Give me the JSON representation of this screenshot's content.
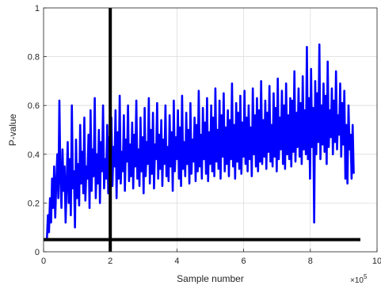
{
  "chart_data": {
    "type": "line",
    "xlabel": "Sample number",
    "ylabel": "P-value",
    "x_exponent_label": "×10",
    "x_exponent_power": "5",
    "xlim": [
      0,
      10
    ],
    "ylim": [
      0,
      1
    ],
    "grid": true,
    "x_ticks": [
      0,
      2,
      4,
      6,
      8,
      10
    ],
    "x_tick_labels": [
      "0",
      "2",
      "4",
      "6",
      "8",
      "10"
    ],
    "y_ticks": [
      0,
      0.2,
      0.4,
      0.6,
      0.8,
      1
    ],
    "y_tick_labels": [
      "0",
      "0.2",
      "0.4",
      "0.6",
      "0.8",
      "1"
    ],
    "series": [
      {
        "color": "#0000ff",
        "x_start": 0.1,
        "x_end": 9.3,
        "values": [
          0.05,
          0.15,
          0.08,
          0.22,
          0.12,
          0.3,
          0.18,
          0.35,
          0.14,
          0.28,
          0.4,
          0.22,
          0.62,
          0.3,
          0.18,
          0.42,
          0.25,
          0.35,
          0.12,
          0.28,
          0.45,
          0.2,
          0.38,
          0.15,
          0.6,
          0.26,
          0.33,
          0.1,
          0.46,
          0.22,
          0.36,
          0.19,
          0.52,
          0.28,
          0.41,
          0.24,
          0.55,
          0.21,
          0.35,
          0.3,
          0.48,
          0.18,
          0.58,
          0.25,
          0.42,
          0.31,
          0.63,
          0.22,
          0.4,
          0.28,
          0.5,
          0.2,
          0.45,
          0.33,
          0.6,
          0.26,
          0.38,
          0.3,
          0.52,
          0.24,
          0.47,
          0.32,
          0.55,
          0.27,
          0.43,
          0.35,
          0.58,
          0.22,
          0.49,
          0.3,
          0.64,
          0.28,
          0.41,
          0.33,
          0.56,
          0.25,
          0.46,
          0.37,
          0.6,
          0.29,
          0.44,
          0.31,
          0.53,
          0.26,
          0.48,
          0.35,
          0.62,
          0.3,
          0.42,
          0.27,
          0.55,
          0.33,
          0.47,
          0.24,
          0.59,
          0.31,
          0.45,
          0.36,
          0.63,
          0.28,
          0.5,
          0.32,
          0.57,
          0.26,
          0.44,
          0.38,
          0.61,
          0.3,
          0.48,
          0.34,
          0.54,
          0.27,
          0.46,
          0.36,
          0.6,
          0.31,
          0.43,
          0.29,
          0.56,
          0.35,
          0.49,
          0.25,
          0.62,
          0.33,
          0.47,
          0.38,
          0.58,
          0.3,
          0.51,
          0.27,
          0.64,
          0.34,
          0.45,
          0.31,
          0.57,
          0.36,
          0.5,
          0.28,
          0.61,
          0.32,
          0.46,
          0.37,
          0.55,
          0.29,
          0.52,
          0.33,
          0.66,
          0.35,
          0.48,
          0.3,
          0.59,
          0.38,
          0.53,
          0.32,
          0.63,
          0.29,
          0.49,
          0.36,
          0.6,
          0.33,
          0.55,
          0.31,
          0.67,
          0.37,
          0.5,
          0.34,
          0.62,
          0.3,
          0.56,
          0.39,
          0.65,
          0.33,
          0.51,
          0.36,
          0.58,
          0.31,
          0.54,
          0.38,
          0.69,
          0.35,
          0.52,
          0.3,
          0.61,
          0.37,
          0.57,
          0.34,
          0.64,
          0.32,
          0.53,
          0.39,
          0.66,
          0.36,
          0.55,
          0.33,
          0.6,
          0.38,
          0.51,
          0.31,
          0.67,
          0.4,
          0.56,
          0.35,
          0.63,
          0.33,
          0.58,
          0.37,
          0.7,
          0.36,
          0.54,
          0.39,
          0.62,
          0.34,
          0.57,
          0.41,
          0.68,
          0.37,
          0.52,
          0.35,
          0.65,
          0.39,
          0.59,
          0.33,
          0.71,
          0.38,
          0.55,
          0.42,
          0.66,
          0.36,
          0.6,
          0.34,
          0.69,
          0.4,
          0.56,
          0.38,
          0.63,
          0.35,
          0.62,
          0.41,
          0.74,
          0.37,
          0.57,
          0.43,
          0.67,
          0.39,
          0.61,
          0.36,
          0.72,
          0.42,
          0.58,
          0.4,
          0.84,
          0.38,
          0.63,
          0.3,
          0.75,
          0.43,
          0.59,
          0.12,
          0.7,
          0.4,
          0.65,
          0.45,
          0.85,
          0.38,
          0.6,
          0.44,
          0.69,
          0.41,
          0.64,
          0.36,
          0.78,
          0.43,
          0.58,
          0.47,
          0.67,
          0.4,
          0.62,
          0.45,
          0.74,
          0.42,
          0.56,
          0.48,
          0.69,
          0.39,
          0.61,
          0.44,
          0.66,
          0.3,
          0.52,
          0.28,
          0.6,
          0.42,
          0.48,
          0.3,
          0.52,
          0.32
        ]
      }
    ],
    "reference_lines": [
      {
        "orientation": "vertical",
        "x": 2,
        "color": "#000000"
      },
      {
        "orientation": "horizontal",
        "y": 0.05,
        "x_from": 0,
        "x_to": 9.5,
        "color": "#000000"
      }
    ]
  }
}
